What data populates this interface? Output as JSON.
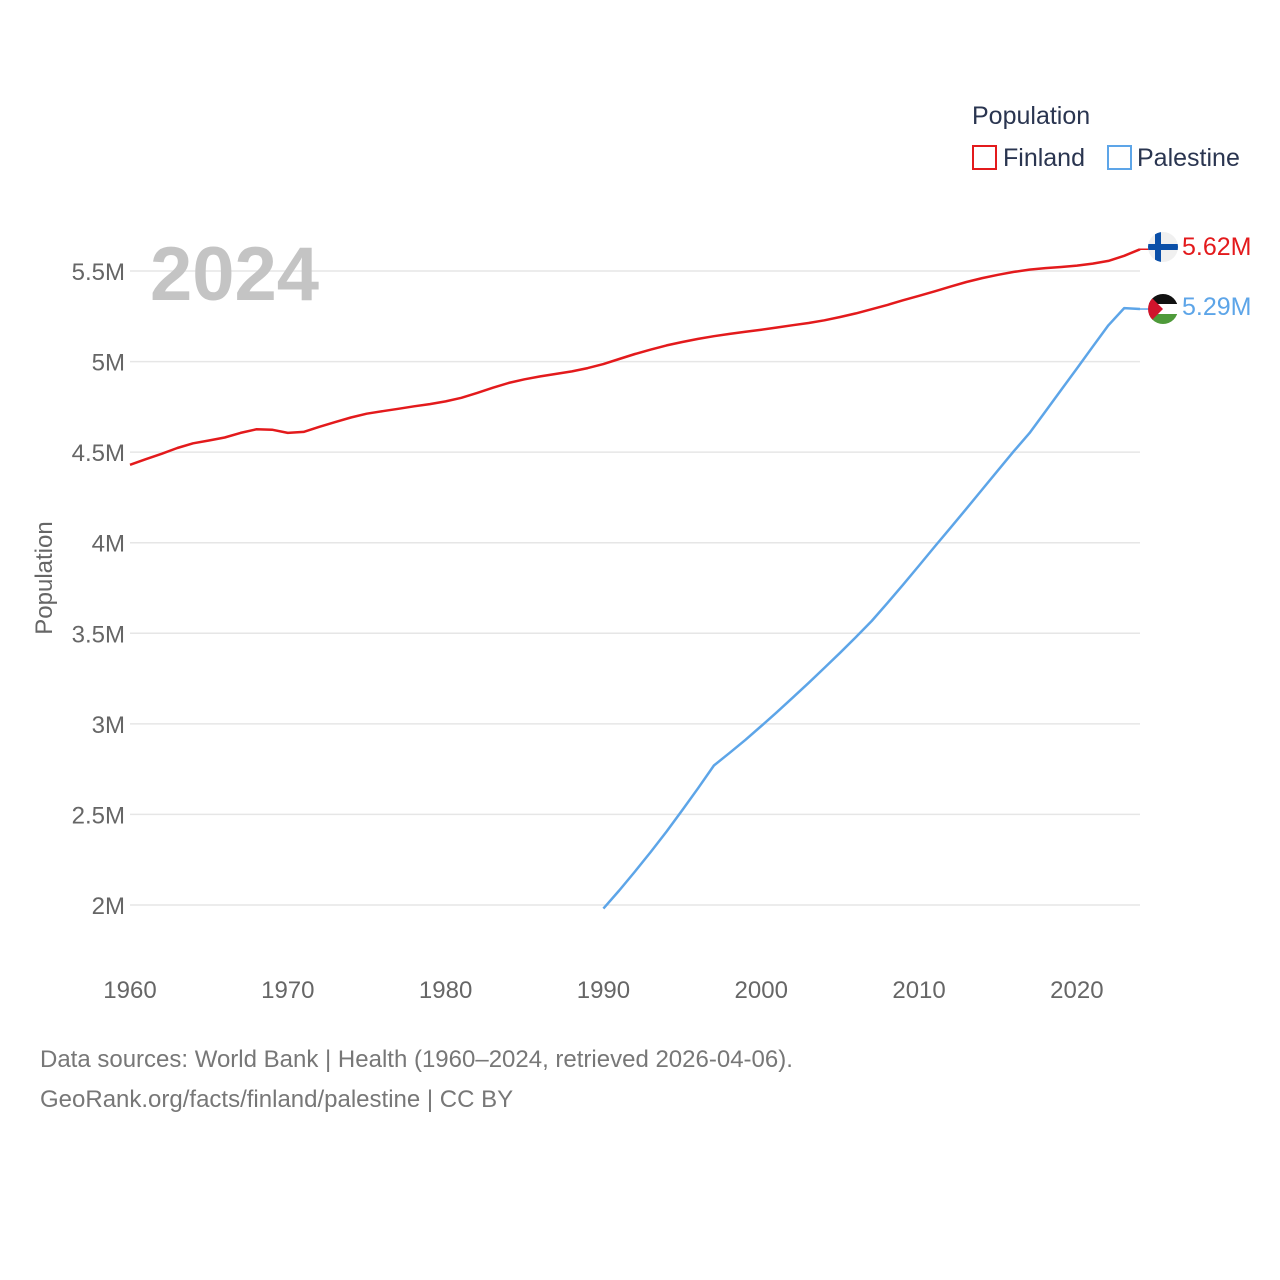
{
  "colors": {
    "finland": "#e31a1c",
    "palestine": "#5da5e8",
    "grid": "#e6e6e6",
    "axis_text": "#666666",
    "legend_title": "#2a3550",
    "year_watermark": "#c4c4c4"
  },
  "legend": {
    "title": "Population",
    "items": [
      "Finland",
      "Palestine"
    ]
  },
  "year_label": "2024",
  "end_labels": {
    "finland": "5.62M",
    "palestine": "5.29M"
  },
  "flags": {
    "finland": "finland-flag-icon",
    "palestine": "palestine-flag-icon"
  },
  "footer": {
    "line1": "Data sources: World Bank | Health (1960–2024, retrieved 2026-04-06).",
    "line2": "GeoRank.org/facts/finland/palestine | CC BY"
  },
  "chart_data": {
    "type": "line",
    "title": "",
    "xlabel": "",
    "ylabel": "Population",
    "xlim": [
      1960,
      2024
    ],
    "ylim": [
      2000000,
      5620000
    ],
    "x_ticks": [
      1960,
      1970,
      1980,
      1990,
      2000,
      2010,
      2020
    ],
    "x_tick_labels": [
      "1960",
      "1970",
      "1980",
      "1990",
      "2000",
      "2010",
      "2020"
    ],
    "y_ticks": [
      2000000,
      2500000,
      3000000,
      3500000,
      4000000,
      4500000,
      5000000,
      5500000
    ],
    "y_tick_labels": [
      "2M",
      "2.5M",
      "3M",
      "3.5M",
      "4M",
      "4.5M",
      "5M",
      "5.5M"
    ],
    "grid": true,
    "legend_position": "top-right",
    "series": [
      {
        "name": "Finland",
        "x": [
          1960,
          1961,
          1962,
          1963,
          1964,
          1965,
          1966,
          1967,
          1968,
          1969,
          1970,
          1971,
          1972,
          1973,
          1974,
          1975,
          1976,
          1977,
          1978,
          1979,
          1980,
          1981,
          1982,
          1983,
          1984,
          1985,
          1986,
          1987,
          1988,
          1989,
          1990,
          1991,
          1992,
          1993,
          1994,
          1995,
          1996,
          1997,
          1998,
          1999,
          2000,
          2001,
          2002,
          2003,
          2004,
          2005,
          2006,
          2007,
          2008,
          2009,
          2010,
          2011,
          2012,
          2013,
          2014,
          2015,
          2016,
          2017,
          2018,
          2019,
          2020,
          2021,
          2022,
          2023,
          2024
        ],
        "values": [
          4430000,
          4461000,
          4491000,
          4523000,
          4549000,
          4564000,
          4581000,
          4606000,
          4626000,
          4624000,
          4606000,
          4612000,
          4640000,
          4666000,
          4691000,
          4712000,
          4726000,
          4739000,
          4753000,
          4765000,
          4780000,
          4800000,
          4827000,
          4856000,
          4882000,
          4902000,
          4918000,
          4932000,
          4946000,
          4964000,
          4986000,
          5014000,
          5042000,
          5066000,
          5089000,
          5108000,
          5125000,
          5140000,
          5153000,
          5165000,
          5176000,
          5188000,
          5201000,
          5213000,
          5228000,
          5246000,
          5266000,
          5289000,
          5313000,
          5339000,
          5363000,
          5388000,
          5414000,
          5439000,
          5461000,
          5479000,
          5495000,
          5508000,
          5516000,
          5522000,
          5530000,
          5541000,
          5556000,
          5584000,
          5620000
        ]
      },
      {
        "name": "Palestine",
        "x": [
          1990,
          1991,
          1992,
          1993,
          1994,
          1995,
          1996,
          1997,
          1998,
          1999,
          2000,
          2001,
          2002,
          2003,
          2004,
          2005,
          2006,
          2007,
          2008,
          2009,
          2010,
          2011,
          2012,
          2013,
          2014,
          2015,
          2016,
          2017,
          2018,
          2019,
          2020,
          2021,
          2022,
          2023,
          2024
        ],
        "values": [
          1980000,
          2080000,
          2185000,
          2293000,
          2406000,
          2524000,
          2645000,
          2770000,
          2840000,
          2912000,
          2988000,
          3065000,
          3145000,
          3226000,
          3309000,
          3393000,
          3479000,
          3568000,
          3668000,
          3770000,
          3874000,
          3979000,
          4083000,
          4188000,
          4294000,
          4400000,
          4505000,
          4605000,
          4724000,
          4843000,
          4962000,
          5082000,
          5200000,
          5295000,
          5290000
        ]
      }
    ]
  }
}
